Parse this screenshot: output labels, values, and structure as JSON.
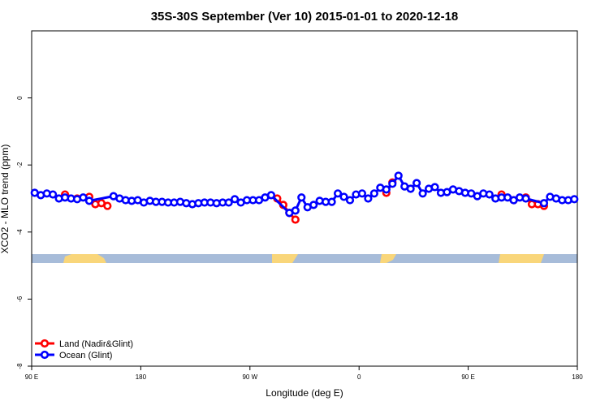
{
  "chart_data": {
    "type": "line",
    "title": "35S-30S September (Ver 10)   2015-01-01 to 2020-12-18",
    "xlabel": "Longitude (deg E)",
    "ylabel": "XCO2 - MLO trend (ppm)",
    "xlim": [
      90,
      540
    ],
    "xticks": [
      {
        "value": 90,
        "label": "90 E"
      },
      {
        "value": 180,
        "label": "180"
      },
      {
        "value": 270,
        "label": "90 W"
      },
      {
        "value": 360,
        "label": "0"
      },
      {
        "value": 450,
        "label": "90 E"
      },
      {
        "value": 540,
        "label": "180"
      }
    ],
    "ylim": [
      -8,
      2
    ],
    "yticks": [
      -8,
      -6,
      -4,
      -2,
      0
    ],
    "legend": "bottom-left",
    "series": [
      {
        "name": "Land (Nadir&Glint)",
        "color": "#ff0000",
        "x": [
          117.5,
          127.5,
          137.5,
          142.5,
          147.5,
          152.5,
          292.5,
          297.5,
          302.5,
          307.5,
          382.5,
          387.5,
          477.5,
          487.5,
          497.5,
          502.5,
          507.5,
          512.5
        ],
        "values": [
          -2.88,
          -3.0,
          -2.95,
          -3.17,
          -3.14,
          -3.22,
          -3.0,
          -3.19,
          -3.43,
          -3.63,
          -2.83,
          -2.52,
          -2.88,
          -3.05,
          -2.97,
          -3.17,
          -3.17,
          -3.22
        ]
      },
      {
        "name": "Ocean (Glint)",
        "color": "#0000ff",
        "x": [
          92.5,
          97.5,
          102.5,
          107.5,
          112.5,
          117.5,
          122.5,
          127.5,
          132.5,
          137.5,
          157.5,
          162.5,
          167.5,
          172.5,
          177.5,
          182.5,
          187.5,
          192.5,
          197.5,
          202.5,
          207.5,
          212.5,
          217.5,
          222.5,
          227.5,
          232.5,
          237.5,
          242.5,
          247.5,
          252.5,
          257.5,
          262.5,
          267.5,
          272.5,
          277.5,
          282.5,
          287.5,
          302.5,
          307.5,
          312.5,
          317.5,
          322.5,
          327.5,
          332.5,
          337.5,
          342.5,
          347.5,
          352.5,
          357.5,
          362.5,
          367.5,
          372.5,
          377.5,
          382.5,
          387.5,
          392.5,
          397.5,
          402.5,
          407.5,
          412.5,
          417.5,
          422.5,
          427.5,
          432.5,
          437.5,
          442.5,
          447.5,
          452.5,
          457.5,
          462.5,
          467.5,
          472.5,
          477.5,
          482.5,
          487.5,
          492.5,
          497.5,
          512.5,
          517.5,
          522.5,
          527.5,
          532.5,
          537.5
        ],
        "values": [
          -2.83,
          -2.9,
          -2.85,
          -2.88,
          -3.0,
          -2.97,
          -3.0,
          -3.02,
          -2.97,
          -3.07,
          -2.93,
          -3.0,
          -3.05,
          -3.07,
          -3.05,
          -3.12,
          -3.07,
          -3.1,
          -3.1,
          -3.12,
          -3.12,
          -3.1,
          -3.14,
          -3.17,
          -3.14,
          -3.12,
          -3.12,
          -3.14,
          -3.12,
          -3.12,
          -3.02,
          -3.12,
          -3.05,
          -3.05,
          -3.05,
          -2.97,
          -2.9,
          -3.43,
          -3.36,
          -2.97,
          -3.26,
          -3.19,
          -3.07,
          -3.1,
          -3.1,
          -2.85,
          -2.95,
          -3.05,
          -2.88,
          -2.85,
          -3.0,
          -2.85,
          -2.68,
          -2.73,
          -2.56,
          -2.32,
          -2.64,
          -2.71,
          -2.54,
          -2.85,
          -2.71,
          -2.66,
          -2.83,
          -2.81,
          -2.73,
          -2.78,
          -2.83,
          -2.85,
          -2.93,
          -2.85,
          -2.88,
          -3.0,
          -2.97,
          -2.97,
          -3.05,
          -2.97,
          -3.0,
          -3.14,
          -2.95,
          -3.0,
          -3.05,
          -3.05,
          -3.02
        ]
      }
    ]
  }
}
